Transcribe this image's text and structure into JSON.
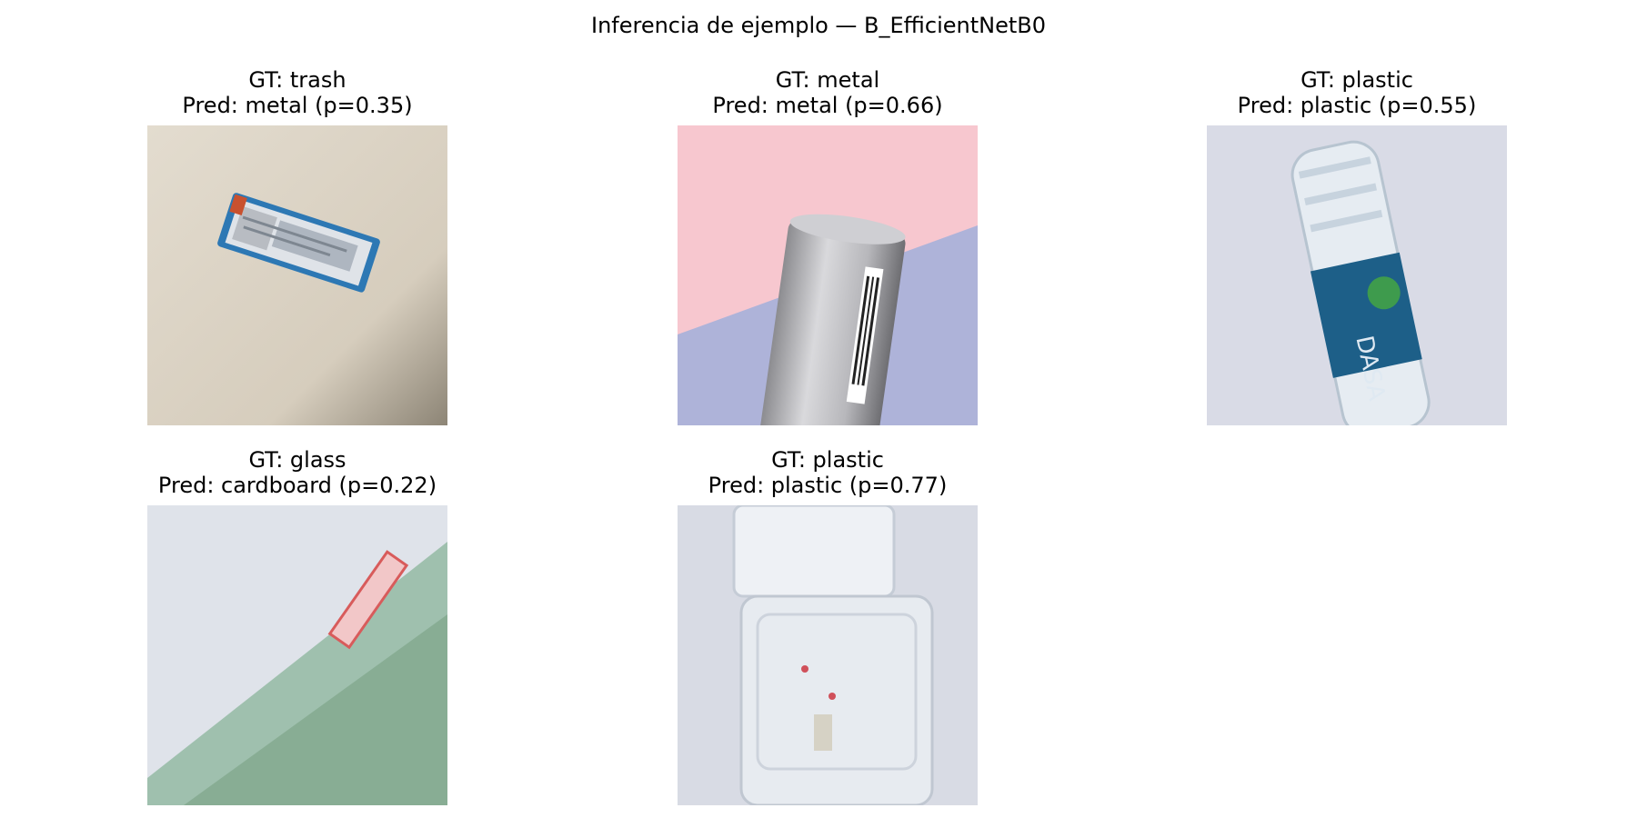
{
  "figure": {
    "title": "Inferencia de ejemplo — B_EfficientNetB0"
  },
  "panels": [
    {
      "gt": "GT: trash",
      "pred": "Pred: metal (p=0.35)",
      "image": "crumpled-wrapper-photo"
    },
    {
      "gt": "GT: metal",
      "pred": "Pred: metal (p=0.66)",
      "image": "energy-drink-can-photo"
    },
    {
      "gt": "GT: plastic",
      "pred": "Pred: plastic (p=0.55)",
      "image": "water-bottle-photo",
      "label_text": "DASA"
    },
    {
      "gt": "GT: glass",
      "pred": "Pred: cardboard (p=0.22)",
      "image": "glass-bottle-photo"
    },
    {
      "gt": "GT: plastic",
      "pred": "Pred: plastic (p=0.77)",
      "image": "clamshell-container-photo"
    }
  ]
}
